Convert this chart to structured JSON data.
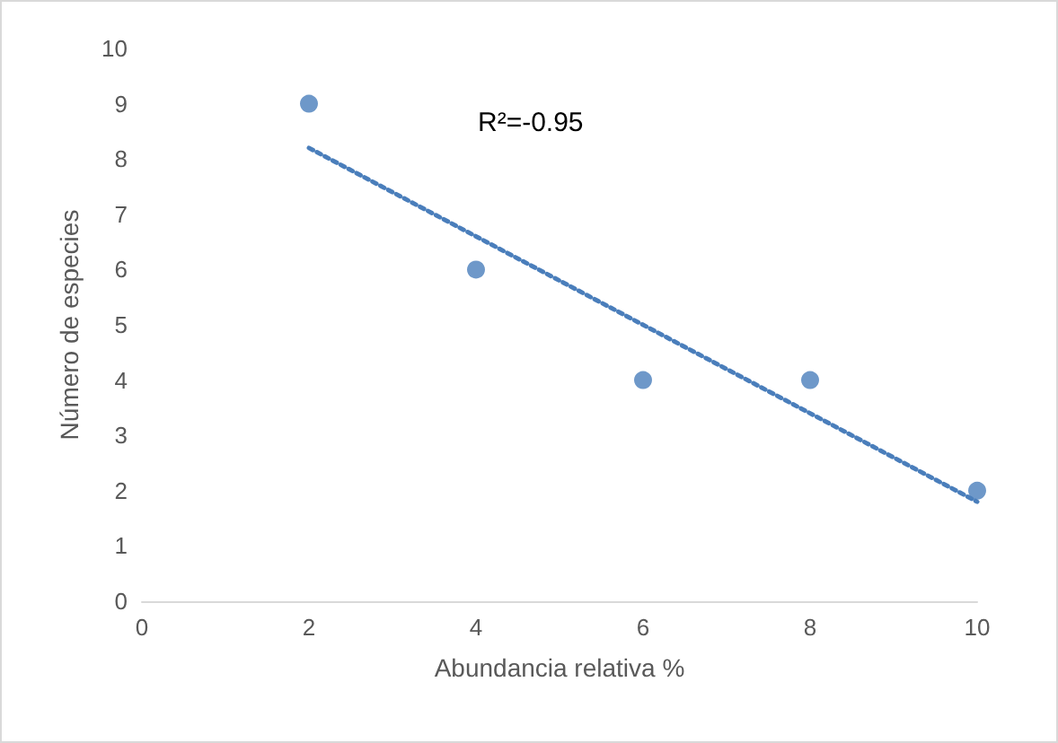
{
  "chart_data": {
    "type": "scatter",
    "xlabel": "Abundancia relativa %",
    "ylabel": "Número de especies",
    "annotations": [
      "R²=-0.95"
    ],
    "series": [
      {
        "color": "#4a7ebb",
        "marker": "circle",
        "x": [
          2,
          4,
          6,
          8,
          10
        ],
        "values": [
          9,
          6,
          4,
          4,
          2
        ]
      },
      {
        "type": "line",
        "color": "#4a7ebb",
        "marker": "none",
        "line_style": "dotted",
        "x": [
          2,
          10
        ],
        "values": [
          8.2,
          1.8
        ]
      }
    ],
    "xlim": [
      0,
      10
    ],
    "xticks": [
      0,
      2,
      4,
      6,
      8,
      10
    ],
    "ylim": [
      0,
      10
    ],
    "yticks": [
      0,
      1,
      2,
      3,
      4,
      5,
      6,
      7,
      8,
      9,
      10
    ],
    "grid": false
  }
}
